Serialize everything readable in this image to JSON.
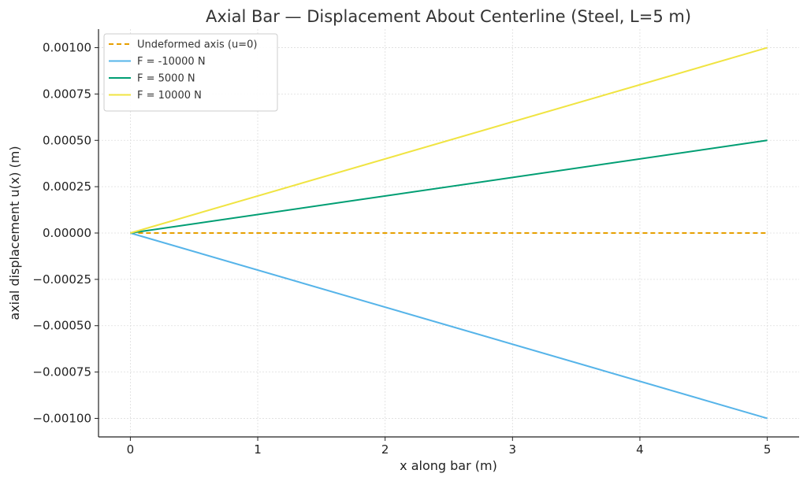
{
  "chart_data": {
    "type": "line",
    "title": "Axial Bar — Displacement About Centerline (Steel, L=5 m)",
    "xlabel": "x along bar (m)",
    "ylabel": "axial displacement u(x) (m)",
    "xlim": [
      -0.25,
      5.25
    ],
    "ylim": [
      -0.0011,
      0.0011
    ],
    "xticks": [
      0,
      1,
      2,
      3,
      4,
      5
    ],
    "xtick_labels": [
      "0",
      "1",
      "2",
      "3",
      "4",
      "5"
    ],
    "yticks": [
      0.001,
      0.00075,
      0.0005,
      0.00025,
      0,
      -0.00025,
      -0.0005,
      -0.00075,
      -0.001
    ],
    "ytick_labels": [
      "0.00100",
      "0.00075",
      "0.00050",
      "0.00025",
      "0.00000",
      "−0.00025",
      "−0.00050",
      "−0.00075",
      "−0.00100"
    ],
    "grid": true,
    "legend_position": "top-left",
    "series": [
      {
        "name": "Undeformed axis (u=0)",
        "color": "#E69F00",
        "dash": true,
        "x": [
          0,
          5
        ],
        "y": [
          0,
          0
        ]
      },
      {
        "name": "F = -10000 N",
        "color": "#56B4E9",
        "dash": false,
        "x": [
          0,
          5
        ],
        "y": [
          0,
          -0.001
        ]
      },
      {
        "name": "F = 5000 N",
        "color": "#009E73",
        "dash": false,
        "x": [
          0,
          5
        ],
        "y": [
          0,
          0.0005
        ]
      },
      {
        "name": "F = 10000 N",
        "color": "#F0E442",
        "dash": false,
        "x": [
          0,
          5
        ],
        "y": [
          0,
          0.001
        ]
      }
    ]
  }
}
